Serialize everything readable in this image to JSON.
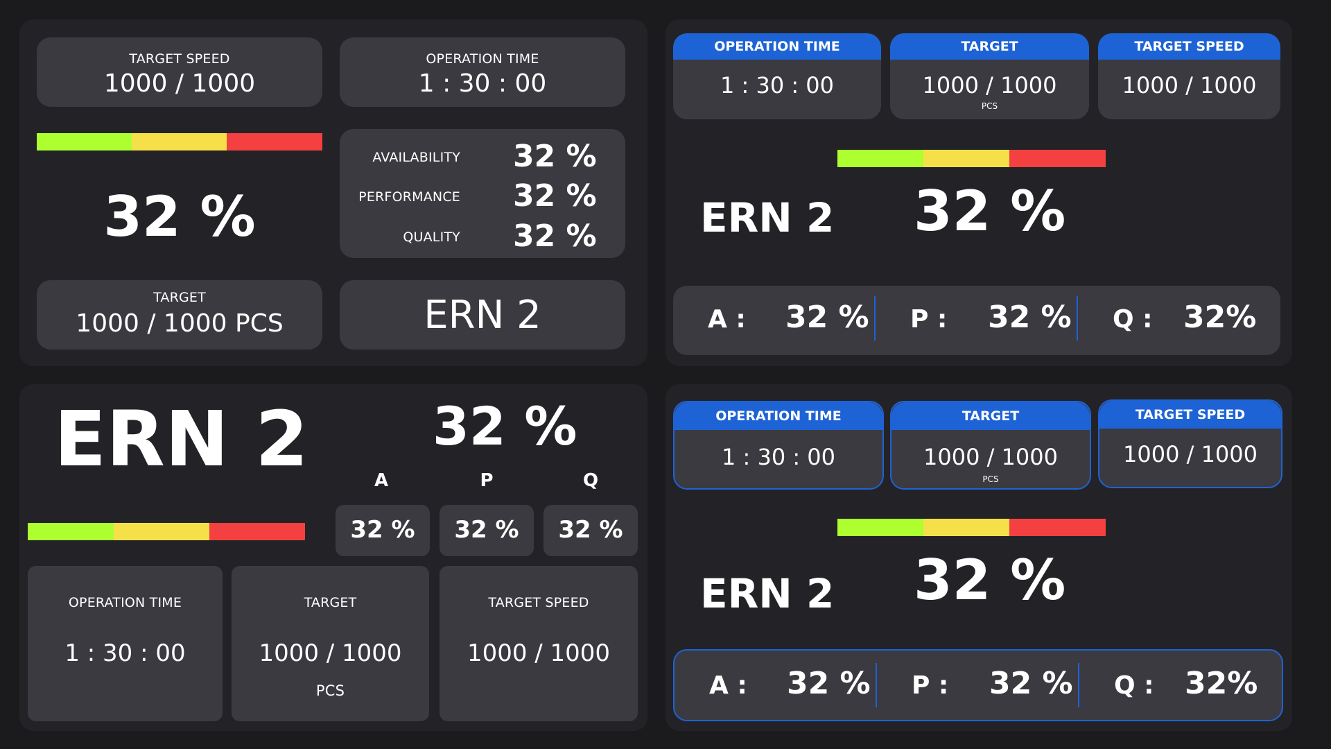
{
  "colors": {
    "background": "#1b1b1e",
    "panel": "#232327",
    "card": "#3a3a40",
    "accent_blue": "#1e63d6",
    "bar_green": "#adff2f",
    "bar_yellow": "#f5e04a",
    "bar_red": "#f44040"
  },
  "progress_bar": {
    "green_fraction": 0.333,
    "yellow_fraction": 0.333,
    "red_fraction": 0.334
  },
  "panel1": {
    "target_speed_label": "TARGET SPEED",
    "target_speed_value": "1000 / 1000",
    "operation_time_label": "OPERATION TIME",
    "operation_time_value": "1 : 30 : 00",
    "oee_value": "32 %",
    "availability_label": "AVAILABILITY",
    "availability_value": "32 %",
    "performance_label": "PERFORMANCE",
    "performance_value": "32 %",
    "quality_label": "QUALITY",
    "quality_value": "32 %",
    "target_label": "TARGET",
    "target_value": "1000 / 1000 PCS",
    "machine_name": "ERN 2"
  },
  "panel2": {
    "operation_time_label": "OPERATION TIME",
    "operation_time_value": "1 : 30 : 00",
    "target_label": "TARGET",
    "target_value": "1000 / 1000",
    "target_unit": "PCS",
    "target_speed_label": "TARGET SPEED",
    "target_speed_value": "1000 / 1000",
    "machine_name": "ERN 2",
    "oee_value": "32 %",
    "a_label": "A :",
    "a_value": "32 %",
    "p_label": "P :",
    "p_value": "32 %",
    "q_label": "Q :",
    "q_value": "32%"
  },
  "panel3": {
    "machine_name": "ERN 2",
    "oee_value": "32 %",
    "a_header": "A",
    "p_header": "P",
    "q_header": "Q",
    "a_value": "32 %",
    "p_value": "32 %",
    "q_value": "32 %",
    "operation_time_label": "OPERATION TIME",
    "operation_time_value": "1 : 30 : 00",
    "target_label": "TARGET",
    "target_value": "1000 / 1000",
    "target_unit": "PCS",
    "target_speed_label": "TARGET SPEED",
    "target_speed_value": "1000 / 1000"
  },
  "panel4": {
    "operation_time_label": "OPERATION TIME",
    "operation_time_value": "1 : 30 : 00",
    "target_label": "TARGET",
    "target_value": "1000 / 1000",
    "target_unit": "PCS",
    "target_speed_label": "TARGET SPEED",
    "target_speed_value": "1000 / 1000",
    "machine_name": "ERN 2",
    "oee_value": "32 %",
    "a_label": "A :",
    "a_value": "32 %",
    "p_label": "P :",
    "p_value": "32 %",
    "q_label": "Q :",
    "q_value": "32%"
  }
}
